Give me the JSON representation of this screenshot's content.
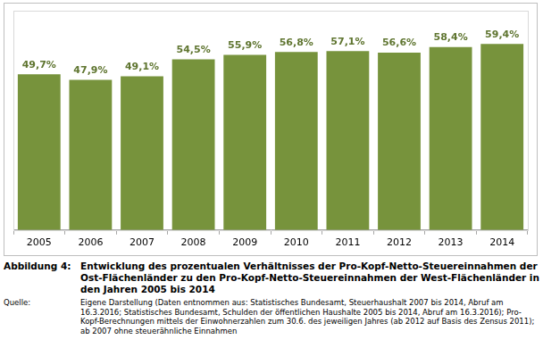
{
  "chart_data": {
    "type": "bar",
    "title": "Entwicklung des prozentualen Verhältnisses der Pro-Kopf-Netto-Steuereinnahmen der Ost-Flächenländer zu den Pro-Kopf-Netto-Steuereinnahmen der West-Flächenländer in den Jahren 2005 bis 2014",
    "categories": [
      "2005",
      "2006",
      "2007",
      "2008",
      "2009",
      "2010",
      "2011",
      "2012",
      "2013",
      "2014"
    ],
    "values": [
      49.7,
      47.9,
      49.1,
      54.5,
      55.9,
      56.8,
      57.1,
      56.6,
      58.4,
      59.4
    ],
    "value_labels": [
      "49,7%",
      "47,9%",
      "49,1%",
      "54,5%",
      "55,9%",
      "56,8%",
      "57,1%",
      "56,6%",
      "58,4%",
      "59,4%"
    ],
    "color": "#77933c",
    "ylim": [
      0,
      70
    ],
    "grid": false,
    "data_labels": true,
    "tick_labels": "x"
  },
  "caption": {
    "figure_label": "Abbildung 4:",
    "source_label": "Quelle:",
    "source": "Eigene Darstellung (Daten entnommen aus: Statistisches Bundesamt, Steuerhaushalt 2007 bis 2014, Abruf am 16.3.2016; Statistisches Bundesamt, Schulden der öffentlichen Haushalte 2005 bis 2014, Abruf am 16.3.2016); Pro-Kopf-Berechnungen mittels der Einwohnerzahlen zum 30.6. des jeweiligen Jahres (ab 2012 auf Basis des Zensus 2011); ab 2007 ohne steuerähnliche Einnahmen"
  }
}
